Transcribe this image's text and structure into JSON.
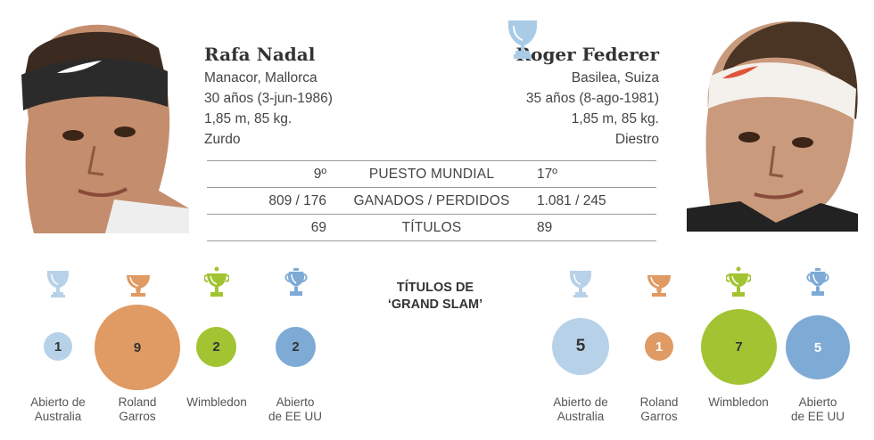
{
  "nadal": {
    "name": "Rafa Nadal",
    "birthplace": "Manacor, Mallorca",
    "age": "30 años (3-jun-1986)",
    "height_weight": "1,85 m, 85 kg.",
    "hand": "Zurdo"
  },
  "federer": {
    "name": "Roger Federer",
    "birthplace": "Basilea, Suiza",
    "age": "35 años (8-ago-1981)",
    "height_weight": "1,85 m, 85 kg.",
    "hand": "Diestro"
  },
  "stats": [
    {
      "label": "PUESTO MUNDIAL",
      "nadal": "9º",
      "federer": "17º"
    },
    {
      "label": "GANADOS / PERDIDOS",
      "nadal": "809 / 176",
      "federer": "1.081 / 245"
    },
    {
      "label": "TÍTULOS",
      "nadal": "69",
      "federer": "89"
    }
  ],
  "grand_slam": {
    "heading_line1": "TÍTULOS DE",
    "heading_line2": "‘GRAND SLAM’",
    "labels": {
      "australia": [
        "Abierto de",
        "Australia"
      ],
      "roland": [
        "Roland",
        "Garros"
      ],
      "wimbledon": [
        "Wimbledon"
      ],
      "usopen": [
        "Abierto",
        "de EE UU"
      ]
    },
    "nadal": {
      "australia": "1",
      "roland": "9",
      "wimbledon": "2",
      "usopen": "2"
    },
    "federer": {
      "australia": "5",
      "roland": "1",
      "wimbledon": "7",
      "usopen": "5"
    }
  },
  "colors": {
    "australia": "#b7d2e8",
    "roland": "#e09a63",
    "wimbledon": "#a2c432",
    "usopen": "#7eabd6"
  },
  "icons": {
    "top_trophy": "cup-trophy-icon",
    "australia": "cup-trophy-icon",
    "roland": "bowl-trophy-icon",
    "wimbledon": "gilt-cup-trophy-icon",
    "usopen": "urn-trophy-icon"
  }
}
